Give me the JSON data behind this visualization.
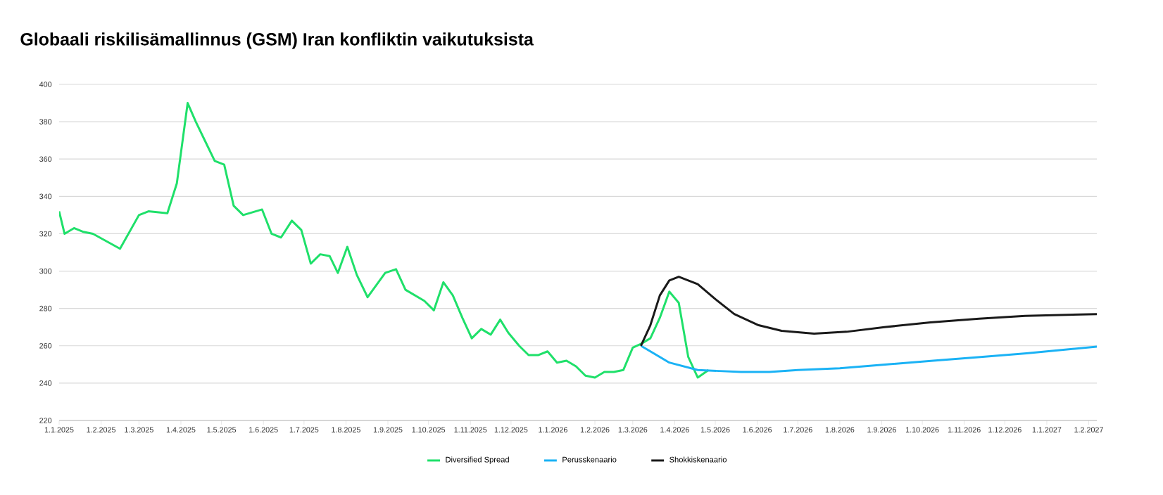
{
  "chart_data": {
    "type": "line",
    "title": "Globaali riskilisämallinnus (GSM) Iran konfliktin vaikutuksista",
    "xlim": [
      "2025-01-01",
      "2027-02-07"
    ],
    "ylim": [
      220,
      400
    ],
    "yticks": [
      220,
      240,
      260,
      280,
      300,
      320,
      340,
      360,
      380,
      400
    ],
    "xticks": [
      {
        "value": "2025-01-01",
        "label": "1.1.2025"
      },
      {
        "value": "2025-02-01",
        "label": "1.2.2025"
      },
      {
        "value": "2025-03-01",
        "label": "1.3.2025"
      },
      {
        "value": "2025-04-01",
        "label": "1.4.2025"
      },
      {
        "value": "2025-05-01",
        "label": "1.5.2025"
      },
      {
        "value": "2025-06-01",
        "label": "1.6.2025"
      },
      {
        "value": "2025-07-01",
        "label": "1.7.2025"
      },
      {
        "value": "2025-08-01",
        "label": "1.8.2025"
      },
      {
        "value": "2025-09-01",
        "label": "1.9.2025"
      },
      {
        "value": "2025-10-01",
        "label": "1.10.2025"
      },
      {
        "value": "2025-11-01",
        "label": "1.11.2025"
      },
      {
        "value": "2025-12-01",
        "label": "1.12.2025"
      },
      {
        "value": "2026-01-01",
        "label": "1.1.2026"
      },
      {
        "value": "2026-02-01",
        "label": "1.2.2026"
      },
      {
        "value": "2026-03-01",
        "label": "1.3.2026"
      },
      {
        "value": "2026-04-01",
        "label": "1.4.2026"
      },
      {
        "value": "2026-05-01",
        "label": "1.5.2026"
      },
      {
        "value": "2026-06-01",
        "label": "1.6.2026"
      },
      {
        "value": "2026-07-01",
        "label": "1.7.2026"
      },
      {
        "value": "2026-08-01",
        "label": "1.8.2026"
      },
      {
        "value": "2026-09-01",
        "label": "1.9.2026"
      },
      {
        "value": "2026-10-01",
        "label": "1.10.2026"
      },
      {
        "value": "2026-11-01",
        "label": "1.11.2026"
      },
      {
        "value": "2026-12-01",
        "label": "1.12.2026"
      },
      {
        "value": "2027-01-01",
        "label": "1.1.2027"
      },
      {
        "value": "2027-02-01",
        "label": "1.2.2027"
      }
    ],
    "grid": "y",
    "legend": "bottom",
    "series": [
      {
        "name": "Diversified Spread",
        "color": "#1fe06a",
        "x": [
          "2025-01-01",
          "2025-01-05",
          "2025-01-12",
          "2025-01-19",
          "2025-01-26",
          "2025-02-15",
          "2025-03-01",
          "2025-03-08",
          "2025-03-22",
          "2025-03-29",
          "2025-04-06",
          "2025-04-12",
          "2025-04-20",
          "2025-04-26",
          "2025-05-03",
          "2025-05-10",
          "2025-05-17",
          "2025-05-31",
          "2025-06-07",
          "2025-06-14",
          "2025-06-22",
          "2025-06-29",
          "2025-07-06",
          "2025-07-13",
          "2025-07-20",
          "2025-07-26",
          "2025-08-02",
          "2025-08-09",
          "2025-08-17",
          "2025-08-30",
          "2025-09-07",
          "2025-09-14",
          "2025-09-28",
          "2025-10-05",
          "2025-10-12",
          "2025-10-19",
          "2025-10-26",
          "2025-11-02",
          "2025-11-09",
          "2025-11-16",
          "2025-11-23",
          "2025-11-29",
          "2025-12-07",
          "2025-12-14",
          "2025-12-21",
          "2025-12-28",
          "2026-01-04",
          "2026-01-11",
          "2026-01-18",
          "2026-01-25",
          "2026-02-01",
          "2026-02-08",
          "2026-02-15",
          "2026-02-22",
          "2026-03-01",
          "2026-03-07",
          "2026-03-14",
          "2026-03-21",
          "2026-03-28",
          "2026-04-04",
          "2026-04-11",
          "2026-04-18",
          "2026-04-26"
        ],
        "values": [
          332,
          320,
          323,
          321,
          320,
          312,
          330,
          332,
          331,
          347,
          390,
          380,
          368,
          359,
          357,
          335,
          330,
          333,
          320,
          318,
          327,
          322,
          304,
          309,
          308,
          299,
          313,
          298,
          286,
          299,
          301,
          290,
          284,
          279,
          294,
          287,
          275,
          264,
          269,
          266,
          274,
          267,
          260,
          255,
          255,
          257,
          251,
          252,
          249,
          244,
          243,
          246,
          246,
          247,
          259,
          261,
          264,
          275,
          289,
          283,
          254,
          243,
          247
        ]
      },
      {
        "name": "Perusskenaario",
        "color": "#1ab2f5",
        "x": [
          "2026-03-07",
          "2026-03-28",
          "2026-04-18",
          "2026-05-20",
          "2026-06-10",
          "2026-07-01",
          "2026-08-01",
          "2026-09-05",
          "2026-10-09",
          "2026-11-13",
          "2026-12-17",
          "2027-02-07"
        ],
        "values": [
          260,
          251,
          247,
          246,
          246,
          247,
          248,
          250,
          252,
          254,
          256,
          259.5
        ]
      },
      {
        "name": "Shokkiskenaario",
        "color": "#1a1a1a",
        "x": [
          "2026-03-07",
          "2026-03-14",
          "2026-03-21",
          "2026-03-28",
          "2026-04-04",
          "2026-04-18",
          "2026-05-01",
          "2026-05-15",
          "2026-06-02",
          "2026-06-19",
          "2026-07-13",
          "2026-08-06",
          "2026-09-03",
          "2026-10-07",
          "2026-11-12",
          "2026-12-16",
          "2027-02-07"
        ],
        "values": [
          260,
          271,
          287,
          295,
          297,
          293,
          285,
          277,
          271,
          268,
          266.5,
          267.5,
          270,
          272.5,
          274.5,
          276,
          277
        ]
      }
    ]
  }
}
